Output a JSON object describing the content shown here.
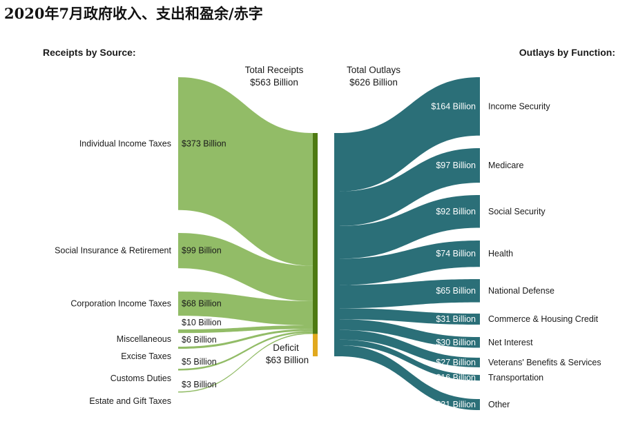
{
  "title": "2020年7月政府收入、支出和盈余/赤字",
  "chart_data": {
    "type": "sankey",
    "unit": "Billion",
    "colors": {
      "receipts": "#8ab75b",
      "receipts_bar": "#4e7a12",
      "deficit": "#e1a91e",
      "outlays": "#2b6f78"
    },
    "receipts": {
      "heading": "Receipts by Source:",
      "total_label": "Total Receipts",
      "total_value": "$563 Billion",
      "items": [
        {
          "name": "Individual Income Taxes",
          "value": 373,
          "value_label": "$373 Billion"
        },
        {
          "name": "Social Insurance & Retirement",
          "value": 99,
          "value_label": "$99 Billion"
        },
        {
          "name": "Corporation Income Taxes",
          "value": 68,
          "value_label": "$68 Billion"
        },
        {
          "name": "Miscellaneous",
          "value": 10,
          "value_label": "$10 Billion"
        },
        {
          "name": "Excise Taxes",
          "value": 6,
          "value_label": "$6 Billion"
        },
        {
          "name": "Customs Duties",
          "value": 5,
          "value_label": "$5 Billion"
        },
        {
          "name": "Estate and Gift Taxes",
          "value": 3,
          "value_label": "$3 Billion"
        }
      ]
    },
    "deficit": {
      "label": "Deficit",
      "value": 63,
      "value_label": "$63 Billion"
    },
    "outlays": {
      "heading": "Outlays by Function:",
      "total_label": "Total Outlays",
      "total_value": "$626 Billion",
      "items": [
        {
          "name": "Income Security",
          "value": 164,
          "value_label": "$164 Billion"
        },
        {
          "name": "Medicare",
          "value": 97,
          "value_label": "$97 Billion"
        },
        {
          "name": "Social Security",
          "value": 92,
          "value_label": "$92 Billion"
        },
        {
          "name": "Health",
          "value": 74,
          "value_label": "$74 Billion"
        },
        {
          "name": "National Defense",
          "value": 65,
          "value_label": "$65 Billion"
        },
        {
          "name": "Commerce & Housing Credit",
          "value": 31,
          "value_label": "$31 Billion"
        },
        {
          "name": "Net Interest",
          "value": 30,
          "value_label": "$30 Billion"
        },
        {
          "name": "Veterans' Benefits & Services",
          "value": 27,
          "value_label": "$27 Billion"
        },
        {
          "name": "Transportation",
          "value": 16,
          "value_label": "$16 Billion"
        },
        {
          "name": "Other",
          "value": 31,
          "value_label": "$31 Billion"
        }
      ]
    }
  }
}
